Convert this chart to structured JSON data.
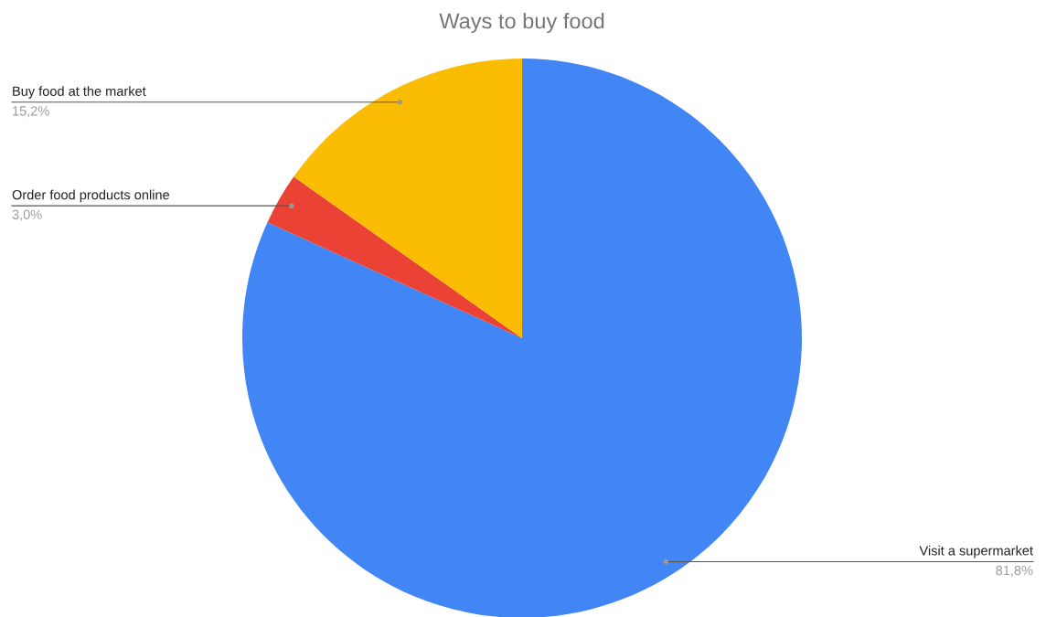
{
  "chart_data": {
    "type": "pie",
    "title": "Ways to buy food",
    "categories": [
      "Visit a supermarket",
      "Order food products online",
      "Buy food at the market"
    ],
    "values": [
      81.8,
      3.0,
      15.2
    ],
    "colors": [
      "#4285f4",
      "#ea4335",
      "#fbbc04"
    ],
    "value_labels": [
      "81,8%",
      "3,0%",
      "15,2%"
    ],
    "legend": false
  }
}
